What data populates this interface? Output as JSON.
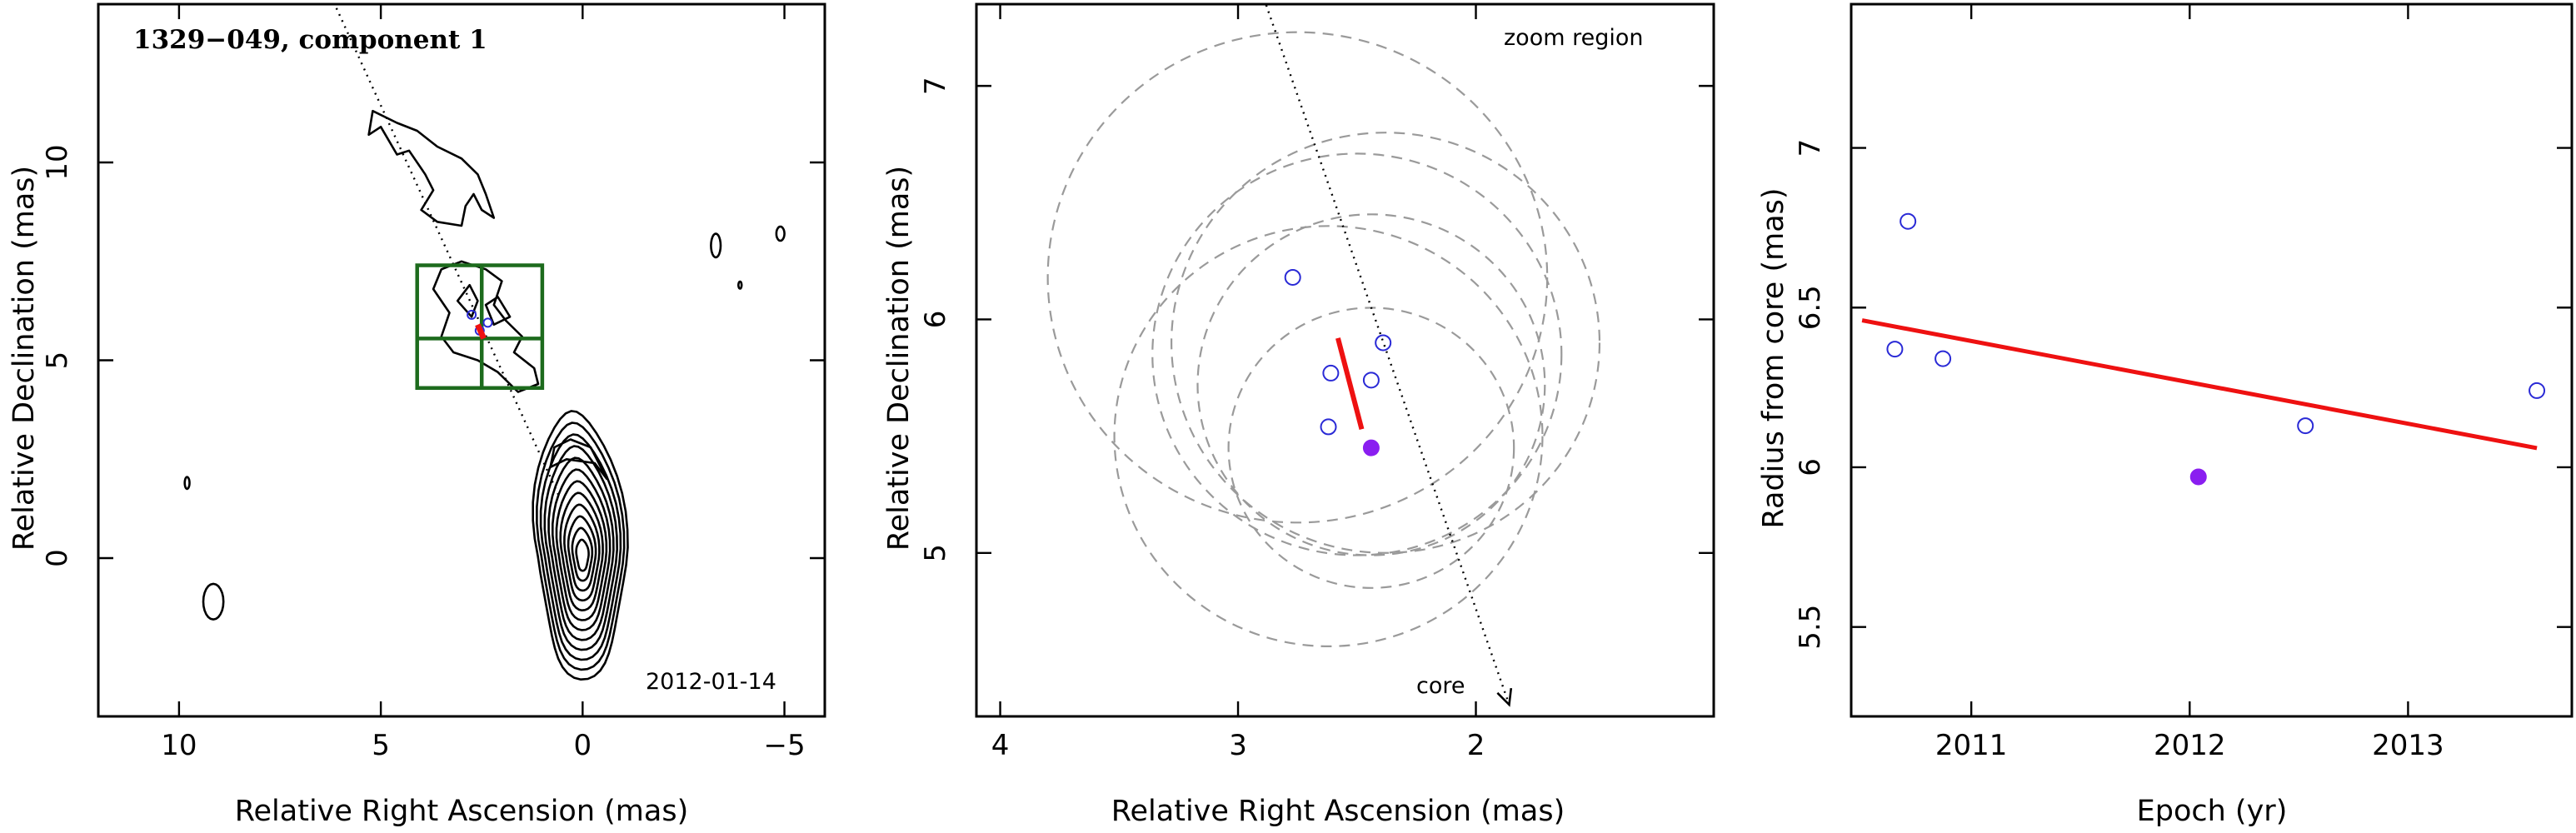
{
  "chart_data": [
    {
      "type": "contour_map",
      "title": "1329−049, component 1",
      "annotation": "2012-01-14",
      "xlabel": "Relative Right Ascension (mas)",
      "ylabel": "Relative Declination (mas)",
      "xlim": [
        12,
        -6
      ],
      "ylim": [
        -4,
        14
      ],
      "xticks": [
        10,
        5,
        0,
        -5
      ],
      "xtick_labels": [
        "10",
        "5",
        "0",
        "−5"
      ],
      "yticks": [
        0,
        5,
        10
      ],
      "ytick_labels": [
        "0",
        "5",
        "10"
      ],
      "jet_axis_line": {
        "x": [
          6.1,
          0.6
        ],
        "y": [
          13.9,
          1.6
        ]
      },
      "zoom_box": {
        "x_range": [
          1.0,
          4.1
        ],
        "y_range": [
          4.3,
          7.4
        ],
        "crosshair": [
          2.5,
          5.55
        ]
      },
      "component_points": [
        {
          "x": 2.55,
          "y": 5.75
        },
        {
          "x": 2.75,
          "y": 6.15
        },
        {
          "x": 2.35,
          "y": 5.95
        }
      ],
      "velocity_vector": {
        "x": [
          2.6,
          2.45
        ],
        "y": [
          5.9,
          5.55
        ]
      },
      "contour_levels": 12
    },
    {
      "type": "scatter",
      "annotation_top": "zoom region",
      "annotation_core": "core",
      "xlabel": "Relative Right Ascension (mas)",
      "ylabel": "Relative Declination (mas)",
      "xlim": [
        4.1,
        1.0
      ],
      "ylim": [
        4.3,
        7.35
      ],
      "xticks": [
        4,
        3,
        2
      ],
      "xtick_labels": [
        "4",
        "3",
        "2"
      ],
      "yticks": [
        5,
        6,
        7
      ],
      "ytick_labels": [
        "5",
        "6",
        "7"
      ],
      "series": [
        {
          "marker": "open-circle",
          "color": "#2a2ad6",
          "x": [
            2.77,
            2.61,
            2.39,
            2.44,
            2.62
          ],
          "y": [
            6.18,
            5.77,
            5.9,
            5.74,
            5.54
          ]
        },
        {
          "marker": "filled-circle",
          "color": "#8a1ef0",
          "x": [
            2.44
          ],
          "y": [
            5.45
          ]
        }
      ],
      "velocity_vector": {
        "x": [
          2.58,
          2.48
        ],
        "y": [
          5.92,
          5.53
        ]
      },
      "jet_axis_arrow": {
        "x": [
          2.9,
          1.86
        ],
        "y": [
          7.4,
          4.35
        ]
      },
      "error_circles": [
        {
          "cx": 2.75,
          "cy": 6.18,
          "r": 1.05
        },
        {
          "cx": 2.5,
          "cy": 5.85,
          "r": 0.86
        },
        {
          "cx": 2.38,
          "cy": 5.9,
          "r": 0.9
        },
        {
          "cx": 2.44,
          "cy": 5.72,
          "r": 0.73
        },
        {
          "cx": 2.62,
          "cy": 5.5,
          "r": 0.9
        },
        {
          "cx": 2.44,
          "cy": 5.45,
          "r": 0.6
        }
      ]
    },
    {
      "type": "scatter",
      "xlabel": "Epoch (yr)",
      "ylabel": "Radius from core (mas)",
      "xlim": [
        2010.45,
        2013.75
      ],
      "ylim": [
        5.22,
        7.45
      ],
      "xticks": [
        2011,
        2012,
        2013
      ],
      "xtick_labels": [
        "2011",
        "2012",
        "2013"
      ],
      "yticks": [
        5.5,
        6,
        6.5,
        7
      ],
      "ytick_labels": [
        "5.5",
        "6",
        "6.5",
        "7"
      ],
      "series": [
        {
          "marker": "open-circle",
          "color": "#2a2ad6",
          "x": [
            2010.65,
            2010.71,
            2010.87,
            2012.53,
            2013.59
          ],
          "y": [
            6.37,
            6.77,
            6.34,
            6.13,
            6.24
          ]
        },
        {
          "marker": "filled-circle",
          "color": "#8a1ef0",
          "x": [
            2012.04
          ],
          "y": [
            5.97
          ]
        }
      ],
      "fit_line": {
        "x": [
          2010.5,
          2013.59
        ],
        "y": [
          6.46,
          6.06
        ],
        "color": "#ee1111"
      }
    }
  ]
}
